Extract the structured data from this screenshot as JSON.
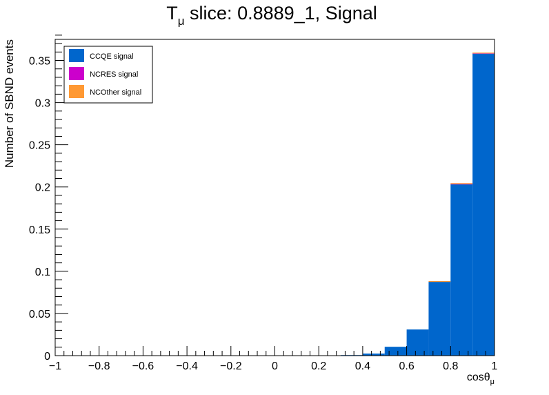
{
  "chart_data": {
    "type": "bar",
    "title": {
      "main": "T",
      "sub": "μ",
      "rest": " slice: 0.8889_1, Signal"
    },
    "xlabel": {
      "main": "cosθ",
      "sub": "μ"
    },
    "ylabel": "Number of SBND events",
    "xlim": [
      -1,
      1
    ],
    "ylim": [
      0,
      0.375
    ],
    "bin_width": 0.1,
    "x_ticks": [
      -1,
      -0.8,
      -0.6,
      -0.4,
      -0.2,
      0,
      0.2,
      0.4,
      0.6,
      0.8,
      1
    ],
    "x_tick_labels": [
      "−1",
      "−0.8",
      "−0.6",
      "−0.4",
      "−0.2",
      "0",
      "0.2",
      "0.4",
      "0.6",
      "0.8",
      "1"
    ],
    "y_ticks": [
      0,
      0.05,
      0.1,
      0.15,
      0.2,
      0.25,
      0.3,
      0.35
    ],
    "y_tick_labels": [
      "0",
      "0.05",
      "0.1",
      "0.15",
      "0.2",
      "0.25",
      "0.3",
      "0.35"
    ],
    "bin_low_edges": [
      0.3,
      0.4,
      0.5,
      0.6,
      0.7,
      0.8,
      0.9
    ],
    "series": [
      {
        "name": "CCQE signal",
        "color": "#0066cc",
        "values": [
          0.0005,
          0.0025,
          0.0105,
          0.031,
          0.0875,
          0.203,
          0.358
        ]
      },
      {
        "name": "NCRES signal",
        "color": "#cc00cc",
        "values": [
          0,
          0,
          0,
          0,
          0,
          0.0005,
          0.0003
        ]
      },
      {
        "name": "NCOther signal",
        "color": "#ff9933",
        "values": [
          0,
          0,
          0,
          0,
          0.0003,
          0.0005,
          0.0005
        ]
      }
    ],
    "legend_position": "top-left",
    "grid": false
  }
}
